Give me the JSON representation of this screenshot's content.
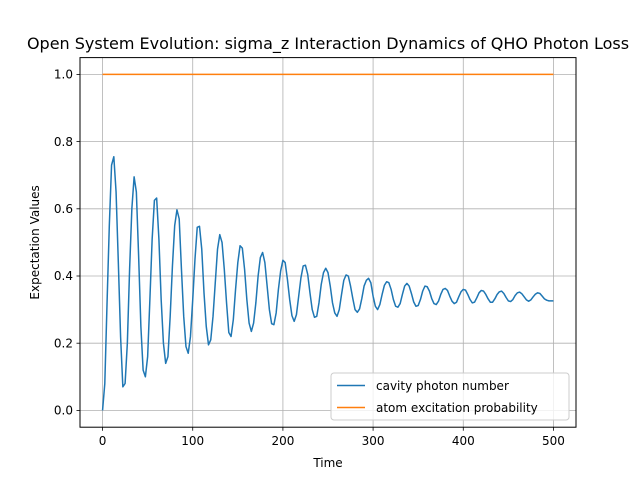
{
  "chart_data": {
    "type": "line",
    "title": "Open System Evolution: sigma_z Interaction Dynamics of QHO Photon Loss",
    "xlabel": "Time",
    "ylabel": "Expectation Values",
    "xlim": [
      -25,
      525
    ],
    "ylim": [
      -0.05,
      1.05
    ],
    "xticks": [
      0,
      100,
      200,
      300,
      400,
      500
    ],
    "yticks": [
      0.0,
      0.2,
      0.4,
      0.6,
      0.8,
      1.0
    ],
    "xtick_labels": [
      "0",
      "100",
      "200",
      "300",
      "400",
      "500"
    ],
    "ytick_labels": [
      "0.0",
      "0.2",
      "0.4",
      "0.6",
      "0.8",
      "1.0"
    ],
    "grid": true,
    "legend_position": "lower-right",
    "series": [
      {
        "name": "cavity photon number",
        "color": "#1f77b4",
        "points": [
          [
            0,
            0.0
          ],
          [
            2.5,
            0.08
          ],
          [
            5,
            0.32
          ],
          [
            7.5,
            0.55
          ],
          [
            10,
            0.73
          ],
          [
            12.5,
            0.755
          ],
          [
            15,
            0.65
          ],
          [
            17.5,
            0.44
          ],
          [
            20,
            0.22
          ],
          [
            22.5,
            0.07
          ],
          [
            25,
            0.08
          ],
          [
            27.5,
            0.2
          ],
          [
            30,
            0.42
          ],
          [
            32.5,
            0.6
          ],
          [
            35,
            0.695
          ],
          [
            37.5,
            0.65
          ],
          [
            40,
            0.46
          ],
          [
            42.5,
            0.25
          ],
          [
            45,
            0.12
          ],
          [
            47.5,
            0.1
          ],
          [
            50,
            0.16
          ],
          [
            52.5,
            0.33
          ],
          [
            55,
            0.51
          ],
          [
            57.5,
            0.625
          ],
          [
            60,
            0.632
          ],
          [
            62.5,
            0.51
          ],
          [
            65,
            0.33
          ],
          [
            67.5,
            0.2
          ],
          [
            70,
            0.14
          ],
          [
            72.5,
            0.16
          ],
          [
            75,
            0.28
          ],
          [
            77.5,
            0.43
          ],
          [
            80,
            0.55
          ],
          [
            82.5,
            0.597
          ],
          [
            85,
            0.57
          ],
          [
            87.5,
            0.42
          ],
          [
            90,
            0.28
          ],
          [
            92.5,
            0.19
          ],
          [
            95,
            0.17
          ],
          [
            97.5,
            0.22
          ],
          [
            100,
            0.33
          ],
          [
            102.5,
            0.45
          ],
          [
            105,
            0.545
          ],
          [
            107.5,
            0.548
          ],
          [
            110,
            0.48
          ],
          [
            112.5,
            0.35
          ],
          [
            115,
            0.25
          ],
          [
            117.5,
            0.195
          ],
          [
            120,
            0.21
          ],
          [
            122.5,
            0.28
          ],
          [
            125,
            0.38
          ],
          [
            127.5,
            0.48
          ],
          [
            130,
            0.523
          ],
          [
            132.5,
            0.5
          ],
          [
            135,
            0.42
          ],
          [
            137.5,
            0.32
          ],
          [
            140,
            0.232
          ],
          [
            142.5,
            0.22
          ],
          [
            145,
            0.27
          ],
          [
            147.5,
            0.36
          ],
          [
            150,
            0.44
          ],
          [
            152.5,
            0.49
          ],
          [
            155,
            0.483
          ],
          [
            157.5,
            0.42
          ],
          [
            160,
            0.33
          ],
          [
            162.5,
            0.26
          ],
          [
            165,
            0.235
          ],
          [
            167.5,
            0.26
          ],
          [
            170,
            0.32
          ],
          [
            172.5,
            0.4
          ],
          [
            175,
            0.455
          ],
          [
            177.5,
            0.47
          ],
          [
            180,
            0.44
          ],
          [
            182.5,
            0.37
          ],
          [
            185,
            0.3
          ],
          [
            187.5,
            0.258
          ],
          [
            190,
            0.255
          ],
          [
            192.5,
            0.29
          ],
          [
            195,
            0.36
          ],
          [
            197.5,
            0.415
          ],
          [
            200,
            0.447
          ],
          [
            202.5,
            0.44
          ],
          [
            205,
            0.39
          ],
          [
            207.5,
            0.33
          ],
          [
            210,
            0.282
          ],
          [
            212.5,
            0.265
          ],
          [
            215,
            0.285
          ],
          [
            217.5,
            0.34
          ],
          [
            220,
            0.395
          ],
          [
            222.5,
            0.43
          ],
          [
            225,
            0.432
          ],
          [
            227.5,
            0.405
          ],
          [
            230,
            0.35
          ],
          [
            232.5,
            0.3
          ],
          [
            235,
            0.277
          ],
          [
            237.5,
            0.28
          ],
          [
            240,
            0.32
          ],
          [
            242.5,
            0.375
          ],
          [
            245,
            0.41
          ],
          [
            247.5,
            0.423
          ],
          [
            250,
            0.41
          ],
          [
            252.5,
            0.37
          ],
          [
            255,
            0.32
          ],
          [
            257.5,
            0.29
          ],
          [
            260,
            0.28
          ],
          [
            262.5,
            0.3
          ],
          [
            265,
            0.345
          ],
          [
            267.5,
            0.387
          ],
          [
            270,
            0.403
          ],
          [
            272.5,
            0.4
          ],
          [
            275,
            0.37
          ],
          [
            277.5,
            0.333
          ],
          [
            280,
            0.3
          ],
          [
            282.5,
            0.292
          ],
          [
            285,
            0.302
          ],
          [
            287.5,
            0.333
          ],
          [
            290,
            0.37
          ],
          [
            292.5,
            0.387
          ],
          [
            295,
            0.393
          ],
          [
            297.5,
            0.38
          ],
          [
            300,
            0.34
          ],
          [
            302.5,
            0.31
          ],
          [
            305,
            0.3
          ],
          [
            307.5,
            0.315
          ],
          [
            310,
            0.345
          ],
          [
            312.5,
            0.372
          ],
          [
            315,
            0.383
          ],
          [
            317.5,
            0.38
          ],
          [
            320,
            0.36
          ],
          [
            322.5,
            0.33
          ],
          [
            325,
            0.31
          ],
          [
            327.5,
            0.307
          ],
          [
            330,
            0.318
          ],
          [
            332.5,
            0.345
          ],
          [
            335,
            0.37
          ],
          [
            337.5,
            0.378
          ],
          [
            340,
            0.37
          ],
          [
            342.5,
            0.348
          ],
          [
            345,
            0.323
          ],
          [
            347.5,
            0.31
          ],
          [
            350,
            0.312
          ],
          [
            352.5,
            0.33
          ],
          [
            355,
            0.355
          ],
          [
            357.5,
            0.37
          ],
          [
            360,
            0.368
          ],
          [
            362.5,
            0.355
          ],
          [
            365,
            0.333
          ],
          [
            367.5,
            0.318
          ],
          [
            370,
            0.315
          ],
          [
            372.5,
            0.325
          ],
          [
            375,
            0.345
          ],
          [
            377.5,
            0.36
          ],
          [
            380,
            0.363
          ],
          [
            382.5,
            0.357
          ],
          [
            385,
            0.34
          ],
          [
            387.5,
            0.325
          ],
          [
            390,
            0.318
          ],
          [
            392.5,
            0.322
          ],
          [
            395,
            0.338
          ],
          [
            397.5,
            0.353
          ],
          [
            400,
            0.36
          ],
          [
            402.5,
            0.358
          ],
          [
            405,
            0.345
          ],
          [
            407.5,
            0.33
          ],
          [
            410,
            0.32
          ],
          [
            412.5,
            0.322
          ],
          [
            415,
            0.335
          ],
          [
            417.5,
            0.35
          ],
          [
            420,
            0.357
          ],
          [
            422.5,
            0.355
          ],
          [
            425,
            0.345
          ],
          [
            427.5,
            0.332
          ],
          [
            430,
            0.322
          ],
          [
            432.5,
            0.322
          ],
          [
            435,
            0.332
          ],
          [
            437.5,
            0.345
          ],
          [
            440,
            0.353
          ],
          [
            442.5,
            0.355
          ],
          [
            445,
            0.348
          ],
          [
            447.5,
            0.336
          ],
          [
            450,
            0.326
          ],
          [
            452.5,
            0.324
          ],
          [
            455,
            0.33
          ],
          [
            457.5,
            0.342
          ],
          [
            460,
            0.35
          ],
          [
            462.5,
            0.352
          ],
          [
            465,
            0.347
          ],
          [
            467.5,
            0.338
          ],
          [
            470,
            0.329
          ],
          [
            472.5,
            0.325
          ],
          [
            475,
            0.329
          ],
          [
            477.5,
            0.338
          ],
          [
            480,
            0.346
          ],
          [
            482.5,
            0.35
          ],
          [
            485,
            0.348
          ],
          [
            487.5,
            0.34
          ],
          [
            490,
            0.332
          ],
          [
            492.5,
            0.328
          ],
          [
            495,
            0.326
          ],
          [
            497.5,
            0.326
          ],
          [
            500,
            0.326
          ]
        ]
      },
      {
        "name": "atom excitation probability",
        "color": "#ff7f0e",
        "points": [
          [
            0,
            1.0
          ],
          [
            500,
            1.0
          ]
        ]
      }
    ]
  }
}
